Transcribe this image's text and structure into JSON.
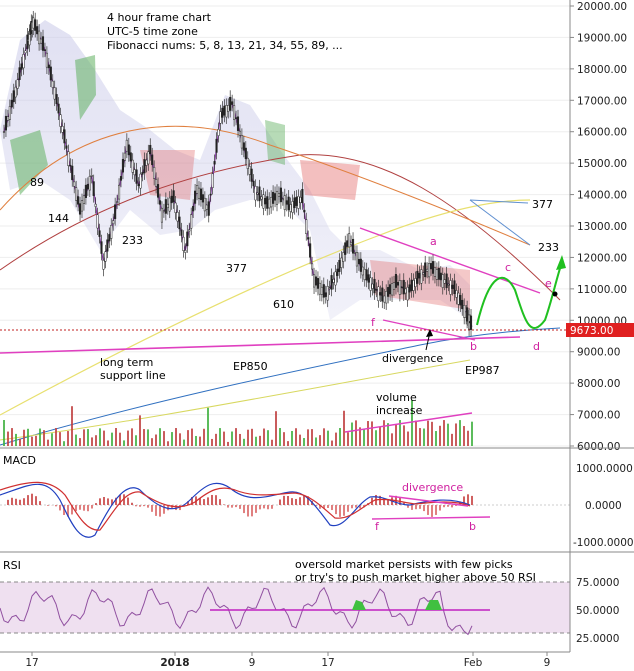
{
  "chart_data": {
    "type": "line",
    "annotations_header": [
      "4 hour frame chart",
      "UTC-5 time zone",
      "Fibonacci nums: 5, 8, 13, 21, 34, 55, 89, ..."
    ],
    "x_ticks": [
      "17",
      "2018",
      "9",
      "17",
      "Feb",
      "9"
    ],
    "price_panel": {
      "y_ticks": [
        "20000.00",
        "19000.00",
        "18000.00",
        "17000.00",
        "16000.00",
        "15000.00",
        "14000.00",
        "13000.00",
        "12000.00",
        "11000.00",
        "10000.00",
        "9000.00",
        "8000.00",
        "7000.00",
        "6000.00"
      ],
      "ylim": [
        6000,
        20000
      ],
      "current_price": "9673.00",
      "price_series": [
        {
          "t": 0,
          "v": 16000
        },
        {
          "t": 2,
          "v": 17300
        },
        {
          "t": 4,
          "v": 18800
        },
        {
          "t": 5,
          "v": 19500
        },
        {
          "t": 7,
          "v": 18600
        },
        {
          "t": 9,
          "v": 17000
        },
        {
          "t": 11,
          "v": 15200
        },
        {
          "t": 13,
          "v": 13500
        },
        {
          "t": 15,
          "v": 14600
        },
        {
          "t": 17,
          "v": 11800
        },
        {
          "t": 19,
          "v": 13400
        },
        {
          "t": 21,
          "v": 15600
        },
        {
          "t": 23,
          "v": 14300
        },
        {
          "t": 25,
          "v": 15400
        },
        {
          "t": 27,
          "v": 13400
        },
        {
          "t": 29,
          "v": 13900
        },
        {
          "t": 31,
          "v": 12200
        },
        {
          "t": 33,
          "v": 14200
        },
        {
          "t": 35,
          "v": 13500
        },
        {
          "t": 37,
          "v": 16500
        },
        {
          "t": 39,
          "v": 16900
        },
        {
          "t": 41,
          "v": 15500
        },
        {
          "t": 43,
          "v": 14100
        },
        {
          "t": 45,
          "v": 13700
        },
        {
          "t": 47,
          "v": 14000
        },
        {
          "t": 49,
          "v": 13600
        },
        {
          "t": 51,
          "v": 13900
        },
        {
          "t": 53,
          "v": 11300
        },
        {
          "t": 55,
          "v": 10800
        },
        {
          "t": 57,
          "v": 11500
        },
        {
          "t": 59,
          "v": 12600
        },
        {
          "t": 61,
          "v": 11700
        },
        {
          "t": 63,
          "v": 11100
        },
        {
          "t": 65,
          "v": 10700
        },
        {
          "t": 67,
          "v": 11200
        },
        {
          "t": 69,
          "v": 10900
        },
        {
          "t": 71,
          "v": 11400
        },
        {
          "t": 73,
          "v": 11700
        },
        {
          "t": 75,
          "v": 11300
        },
        {
          "t": 77,
          "v": 11000
        },
        {
          "t": 79,
          "v": 10200
        },
        {
          "t": 80,
          "v": 9800
        }
      ],
      "ema_labels": [
        "89",
        "144",
        "233",
        "377",
        "610",
        "377",
        "233"
      ],
      "wave_labels": [
        "a",
        "b",
        "c",
        "d",
        "e",
        "f"
      ],
      "text_annotations": [
        "long term\nsupport line",
        "EP850",
        "EP987",
        "divergence",
        "volume\nincrease"
      ]
    },
    "macd_panel": {
      "title": "MACD",
      "y_ticks": [
        "1000.0000",
        "0.0000",
        "-1000.0000"
      ],
      "annotation": "divergence",
      "wave_labels": [
        "f",
        "b"
      ]
    },
    "rsi_panel": {
      "title": "RSI",
      "y_ticks": [
        "75.0000",
        "50.0000",
        "25.0000"
      ],
      "annotation": "oversold market persists with few picks\nor try's to push market higher above 50 RSI"
    },
    "colors": {
      "price": "#222222",
      "support": "#e040c0",
      "ema_blue": "#3070c0",
      "ema_yellow": "#e8e070",
      "cloud_green": "#60b060",
      "cloud_red": "#e06060",
      "projection": "#20c020",
      "current_price_bg": "#e02020"
    }
  }
}
